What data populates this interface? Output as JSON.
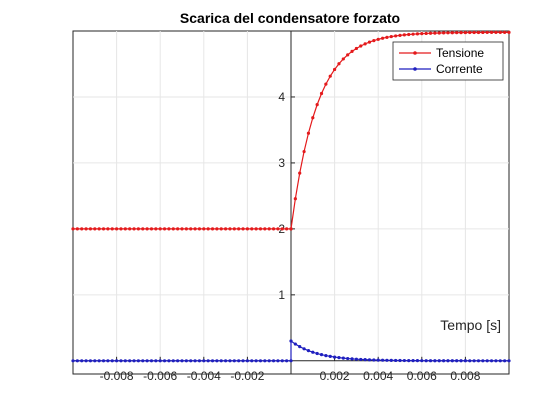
{
  "chart_data": {
    "type": "line",
    "title": "Scarica del condensatore forzato",
    "xlabel": "Tempo [s]",
    "ylabel": "",
    "xlim": [
      -0.01,
      0.01
    ],
    "ylim": [
      -0.2,
      5.0
    ],
    "grid": true,
    "axis_location": "origin",
    "legend_position": "top-right",
    "x_ticks": [
      -0.008,
      -0.006,
      -0.004,
      -0.002,
      0.002,
      0.004,
      0.006,
      0.008
    ],
    "x_tick_labels": [
      "-0.008",
      "-0.006",
      "-0.004",
      "-0.002",
      "0.002",
      "0.004",
      "0.006",
      "0.008"
    ],
    "y_ticks": [
      1,
      2,
      3,
      4
    ],
    "y_tick_labels": [
      "1",
      "2",
      "3",
      "4"
    ],
    "series": [
      {
        "name": "Tensione",
        "color": "#e41a1c",
        "marker": "dot",
        "model": "exponential_step",
        "before_zero": 2.0,
        "start_at_zero": 2.0,
        "final_value": 4.98,
        "tau": 0.0012
      },
      {
        "name": "Corrente",
        "color": "#1f1fbf",
        "marker": "dot",
        "model": "exponential_step",
        "before_zero": 0.0,
        "start_at_zero": 0.3,
        "final_value": 0.0,
        "tau": 0.0012
      }
    ]
  }
}
